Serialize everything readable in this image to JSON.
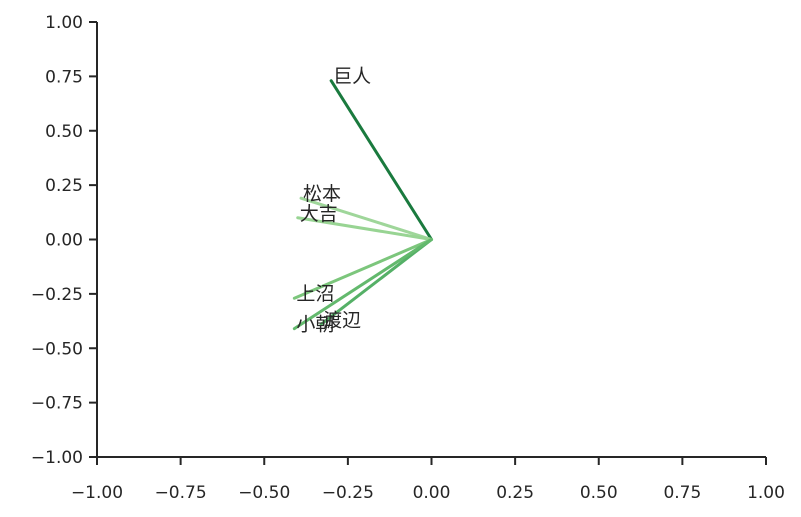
{
  "chart_data": {
    "type": "line",
    "subtype": "vector-loading-plot",
    "title": "",
    "xlabel": "",
    "ylabel": "",
    "xlim": [
      -1.0,
      1.0
    ],
    "ylim": [
      -1.0,
      1.0
    ],
    "grid": false,
    "legend": "none",
    "x_ticks": [
      "−1.00",
      "−0.75",
      "−0.50",
      "−0.25",
      "0.00",
      "0.25",
      "0.50",
      "0.75",
      "1.00"
    ],
    "y_ticks": [
      "1.00",
      "0.75",
      "0.50",
      "0.25",
      "0.00",
      "−0.25",
      "−0.50",
      "−0.75",
      "−1.00"
    ],
    "x_tick_values": [
      -1.0,
      -0.75,
      -0.5,
      -0.25,
      0.0,
      0.25,
      0.5,
      0.75,
      1.0
    ],
    "y_tick_values": [
      1.0,
      0.75,
      0.5,
      0.25,
      0.0,
      -0.25,
      -0.5,
      -0.75,
      -1.0
    ],
    "vectors": [
      {
        "label": "巨人",
        "x": -0.3,
        "y": 0.73,
        "color": "#1a7a3e"
      },
      {
        "label": "松本",
        "x": -0.39,
        "y": 0.19,
        "color": "#9fd69a"
      },
      {
        "label": "大吉",
        "x": -0.4,
        "y": 0.1,
        "color": "#98d493"
      },
      {
        "label": "上沼",
        "x": -0.41,
        "y": -0.27,
        "color": "#7cc67c"
      },
      {
        "label": "渡辺",
        "x": -0.33,
        "y": -0.39,
        "color": "#55b067"
      },
      {
        "label": "小朝",
        "x": -0.41,
        "y": -0.41,
        "color": "#63b96d"
      }
    ]
  }
}
